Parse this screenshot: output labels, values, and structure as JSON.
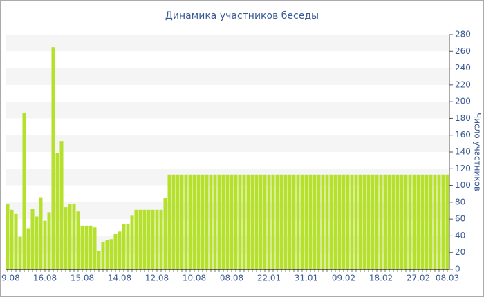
{
  "chart_data": {
    "type": "bar",
    "title": "Динамика участников беседы",
    "y_label": "Число участников",
    "categories": [
      "9.08",
      null,
      null,
      null,
      null,
      null,
      null,
      null,
      null,
      "16.08",
      null,
      null,
      null,
      null,
      null,
      null,
      null,
      null,
      "15.08",
      null,
      null,
      null,
      null,
      null,
      null,
      null,
      null,
      "14.08",
      null,
      null,
      null,
      null,
      null,
      null,
      null,
      null,
      "12.08",
      null,
      null,
      null,
      null,
      null,
      null,
      null,
      null,
      "10.08",
      null,
      null,
      null,
      null,
      null,
      null,
      null,
      null,
      "08.08",
      null,
      null,
      null,
      null,
      null,
      null,
      null,
      null,
      "22.01",
      null,
      null,
      null,
      null,
      null,
      null,
      null,
      null,
      "31.01",
      null,
      null,
      null,
      null,
      null,
      null,
      null,
      null,
      "09.02",
      null,
      null,
      null,
      null,
      null,
      null,
      null,
      null,
      "18.02",
      null,
      null,
      null,
      null,
      null,
      null,
      null,
      null,
      "27.02",
      null,
      null,
      null,
      null,
      null,
      null,
      "08.03"
    ],
    "values": [
      78,
      71,
      66,
      39,
      187,
      49,
      72,
      63,
      86,
      58,
      68,
      265,
      139,
      153,
      74,
      78,
      78,
      69,
      52,
      52,
      52,
      50,
      22,
      33,
      35,
      36,
      42,
      45,
      54,
      54,
      64,
      71,
      71,
      71,
      71,
      71,
      71,
      71,
      85,
      113,
      113,
      113,
      113,
      113,
      113,
      113,
      113,
      113,
      113,
      113,
      113,
      113,
      113,
      113,
      113,
      113,
      113,
      113,
      113,
      113,
      113,
      113,
      113,
      113,
      113,
      113,
      113,
      113,
      113,
      113,
      113,
      113,
      113,
      113,
      113,
      113,
      113,
      113,
      113,
      113,
      113,
      113,
      113,
      113,
      113,
      113,
      113,
      113,
      113,
      113,
      113,
      113,
      113,
      113,
      113,
      113,
      113,
      113,
      113,
      113,
      113,
      113,
      113,
      113,
      113,
      113,
      113
    ],
    "color": "#b5e02e",
    "ylim": [
      0,
      280
    ],
    "yticks": [
      0,
      20,
      40,
      60,
      80,
      100,
      120,
      140,
      160,
      180,
      200,
      220,
      240,
      260,
      280
    ],
    "grid": true,
    "y_axis_side": "right"
  }
}
